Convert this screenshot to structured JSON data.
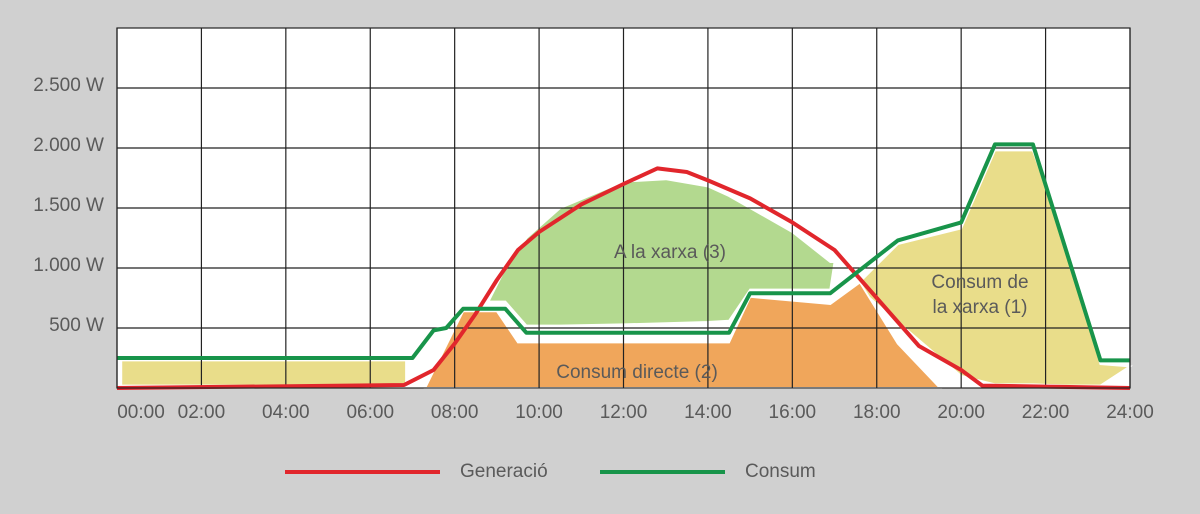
{
  "chart_data": {
    "type": "line",
    "xlim": [
      0,
      24
    ],
    "ylim": [
      0,
      3000
    ],
    "xticks": [
      {
        "value": 0,
        "label": "00:00"
      },
      {
        "value": 2,
        "label": "02:00"
      },
      {
        "value": 4,
        "label": "04:00"
      },
      {
        "value": 6,
        "label": "06:00"
      },
      {
        "value": 8,
        "label": "08:00"
      },
      {
        "value": 10,
        "label": "10:00"
      },
      {
        "value": 12,
        "label": "12:00"
      },
      {
        "value": 14,
        "label": "14:00"
      },
      {
        "value": 16,
        "label": "16:00"
      },
      {
        "value": 18,
        "label": "18:00"
      },
      {
        "value": 20,
        "label": "20:00"
      },
      {
        "value": 22,
        "label": "22:00"
      },
      {
        "value": 24,
        "label": "24:00"
      }
    ],
    "yticks": [
      {
        "value": 500,
        "label": "500 W"
      },
      {
        "value": 1000,
        "label": "1.000 W"
      },
      {
        "value": 1500,
        "label": "1.500 W"
      },
      {
        "value": 2000,
        "label": "2.000 W"
      },
      {
        "value": 2500,
        "label": "2.500 W"
      }
    ],
    "grid": true,
    "series": [
      {
        "name": "Generació",
        "color": "#e1262c",
        "x": [
          0,
          6.8,
          7.5,
          8,
          8.5,
          9,
          9.5,
          10,
          11,
          12,
          12.8,
          13.5,
          14,
          15,
          16,
          17,
          18,
          19,
          20,
          20.5,
          24
        ],
        "values": [
          0,
          25,
          150,
          370,
          620,
          900,
          1150,
          1300,
          1530,
          1700,
          1830,
          1800,
          1730,
          1580,
          1380,
          1150,
          750,
          350,
          150,
          20,
          0
        ]
      },
      {
        "name": "Consum",
        "color": "#18944a",
        "x": [
          0,
          7,
          7.5,
          7.8,
          8.2,
          9.2,
          9.7,
          14.5,
          15,
          16.9,
          18.5,
          20,
          20.8,
          21.7,
          23.3,
          24
        ],
        "values": [
          250,
          250,
          480,
          500,
          660,
          660,
          460,
          460,
          790,
          790,
          1230,
          1380,
          2030,
          2030,
          230,
          230
        ]
      }
    ],
    "areas": [
      {
        "label": [
          "Consum de",
          "la xarxa (1)"
        ],
        "color": "#e9dd8a",
        "x": [
          0.1,
          6.85
        ],
        "lower": [
          20,
          20
        ],
        "upper": [
          230,
          230
        ]
      },
      {
        "label": [
          "Consum de",
          "la xarxa (1)"
        ],
        "color": "#e9dd8a",
        "x": [
          17.5,
          18.5,
          20,
          20.8,
          21.7,
          22.5,
          23.3,
          24
        ],
        "lower": [
          850,
          550,
          100,
          30,
          30,
          20,
          20,
          180
        ],
        "upper": [
          850,
          1200,
          1330,
          1980,
          1980,
          1200,
          200,
          180
        ]
      },
      {
        "label": [
          "Consum directe (2)"
        ],
        "color": "#f0a65b",
        "x": [
          7.3,
          8.2,
          9,
          9.5,
          14.5,
          15,
          16.9,
          17.6,
          18.5,
          19.5
        ],
        "lower": [
          0,
          0,
          0,
          0,
          0,
          0,
          0,
          0,
          0,
          0
        ],
        "upper": [
          0,
          640,
          640,
          380,
          380,
          760,
          700,
          880,
          370,
          0
        ]
      },
      {
        "label": [
          "A la xarxa (3)"
        ],
        "color": "#b3d98f",
        "x": [
          8.8,
          9.2,
          9.7,
          10.5,
          12,
          13,
          14,
          14.5,
          15,
          16,
          16.9,
          17
        ],
        "lower": [
          720,
          720,
          520,
          520,
          530,
          540,
          550,
          560,
          820,
          820,
          820,
          1050
        ],
        "upper": [
          720,
          1000,
          1250,
          1500,
          1720,
          1740,
          1680,
          1600,
          1500,
          1300,
          1050,
          1050
        ]
      }
    ]
  }
}
